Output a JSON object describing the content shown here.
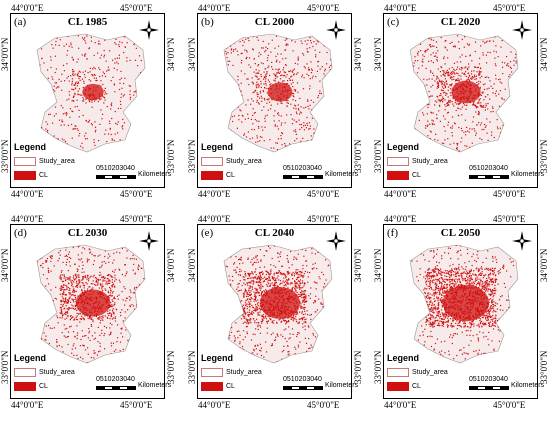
{
  "coordinates": {
    "lon_left": "44°0'0\"E",
    "lon_right": "45°0'0\"E",
    "lat_top": "34°0'0\"N",
    "lat_bottom": "33°0'0\"N"
  },
  "legend": {
    "title": "Legend",
    "study_area": "Study_area",
    "cl": "CL"
  },
  "scale": {
    "numbers": "0510203040",
    "unit": "Kilometers"
  },
  "colors": {
    "cl": "#d01010",
    "study_outline": "#c87878"
  },
  "panels": [
    {
      "letter": "(a)",
      "title": "CL 1985",
      "density": 0.12
    },
    {
      "letter": "(b)",
      "title": "CL 2000",
      "density": 0.2
    },
    {
      "letter": "(c)",
      "title": "CL 2020",
      "density": 0.3
    },
    {
      "letter": "(d)",
      "title": "CL 2030",
      "density": 0.42
    },
    {
      "letter": "(e)",
      "title": "CL 2040",
      "density": 0.55
    },
    {
      "letter": "(f)",
      "title": "CL 2050",
      "density": 0.68
    }
  ]
}
